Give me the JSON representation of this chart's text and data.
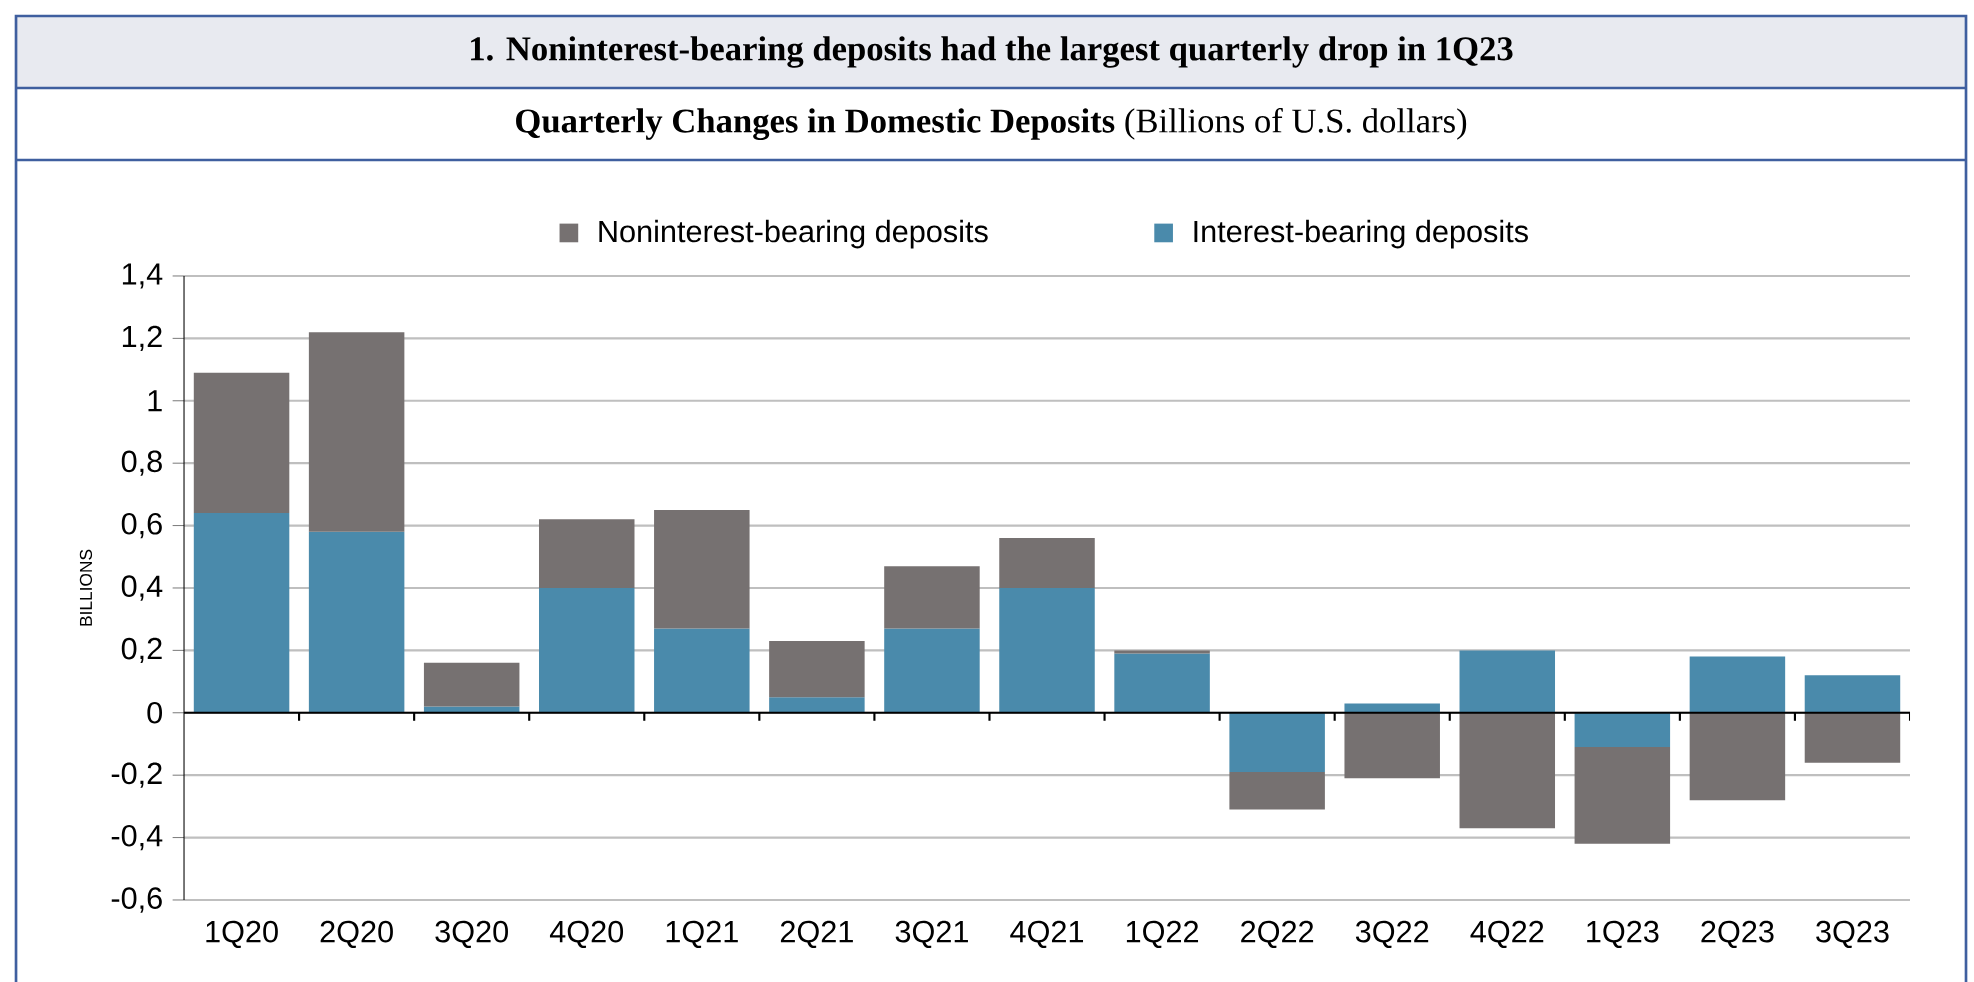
{
  "chart_data": {
    "type": "bar",
    "title": "1. Noninterest-bearing deposits had the largest quarterly drop in 1Q23",
    "subtitle": "**Quarterly Changes in Domestic Deposits** (Billions of U.S. dollars)",
    "ylabel": "BILLIONS",
    "categories": [
      "1Q20",
      "2Q20",
      "3Q20",
      "4Q20",
      "1Q21",
      "2Q21",
      "3Q21",
      "4Q21",
      "1Q22",
      "2Q22",
      "3Q22",
      "4Q22",
      "1Q23",
      "2Q23",
      "3Q23"
    ],
    "stacked": true,
    "series": [
      {
        "name": "Interest-bearing deposits",
        "color": "#4a8aab",
        "values": [
          0.64,
          0.58,
          0.02,
          0.4,
          0.27,
          0.05,
          0.27,
          0.4,
          0.19,
          -0.19,
          0.03,
          0.2,
          -0.11,
          0.18,
          0.12
        ]
      },
      {
        "name": "Noninterest-bearing deposits",
        "color": "#767171",
        "values": [
          0.45,
          0.64,
          0.14,
          0.22,
          0.38,
          0.18,
          0.2,
          0.16,
          0.01,
          -0.12,
          -0.21,
          -0.37,
          -0.31,
          -0.28,
          -0.16
        ]
      }
    ],
    "ylim": [
      -0.6,
      1.4
    ],
    "yticks": [
      {
        "value": -0.6,
        "label": "-0,6"
      },
      {
        "value": -0.4,
        "label": "-0,4"
      },
      {
        "value": -0.2,
        "label": "-0,2"
      },
      0,
      {
        "value": 0.2,
        "label": "0,2"
      },
      {
        "value": 0.4,
        "label": "0,4"
      },
      {
        "value": 0.6,
        "label": "0,6"
      },
      {
        "value": 0.8,
        "label": "0,8"
      },
      1,
      {
        "value": 1.2,
        "label": "1,2"
      },
      {
        "value": 1.4,
        "label": "1,4"
      }
    ],
    "grid": "y",
    "legend": "top"
  }
}
